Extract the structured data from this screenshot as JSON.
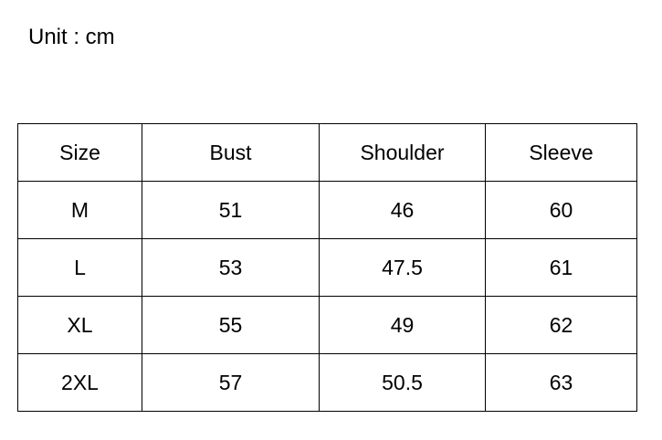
{
  "unit_label": "Unit : cm",
  "table": {
    "headers": [
      "Size",
      "Bust",
      "Shoulder",
      "Sleeve"
    ],
    "rows": [
      [
        "M",
        "51",
        "46",
        "60"
      ],
      [
        "L",
        "53",
        "47.5",
        "61"
      ],
      [
        "XL",
        "55",
        "49",
        "62"
      ],
      [
        "2XL",
        "57",
        "50.5",
        "63"
      ]
    ]
  }
}
